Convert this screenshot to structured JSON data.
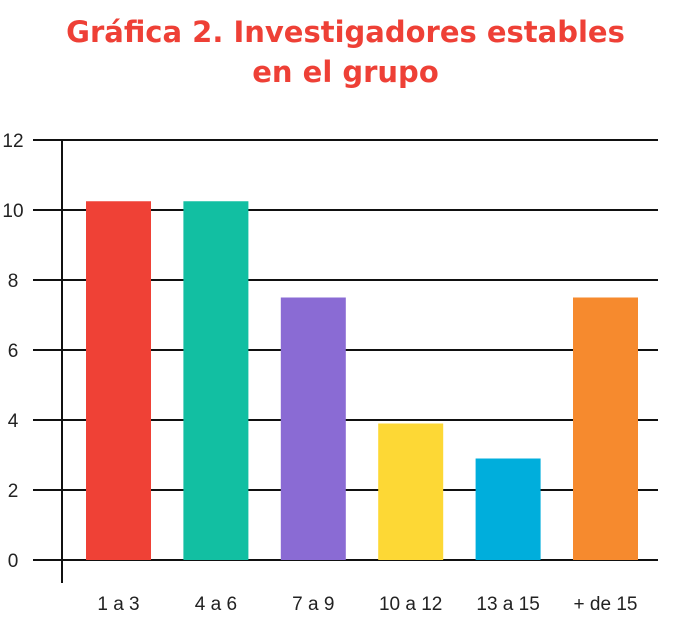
{
  "title_line1": "Gráfica 2. Investigadores estables",
  "title_line2": "en el grupo",
  "chart_data": {
    "type": "bar",
    "title": "Gráfica 2. Investigadores estables en el grupo",
    "xlabel": "",
    "ylabel": "",
    "categories": [
      "1 a 3",
      "4 a 6",
      "7 a 9",
      "10 a 12",
      "13 a 15",
      "+ de 15"
    ],
    "values": [
      10.25,
      10.25,
      7.5,
      3.9,
      2.9,
      7.5
    ],
    "colors": [
      "#ef4136",
      "#12bfa2",
      "#8a6bd4",
      "#fdd835",
      "#00aedc",
      "#f68a2e"
    ],
    "ylim": [
      0,
      12
    ],
    "yticks": [
      0,
      2,
      4,
      6,
      8,
      10,
      12
    ],
    "grid": true,
    "legend": "none"
  }
}
